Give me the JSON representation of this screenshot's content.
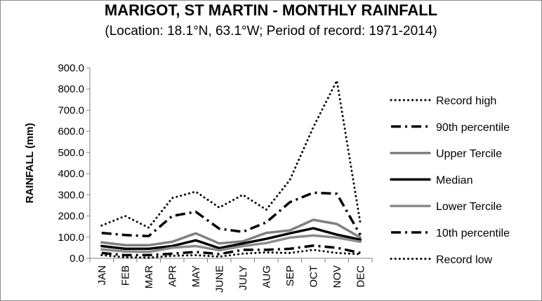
{
  "title": "MARIGOT, ST MARTIN - MONTHLY RAINFALL",
  "subtitle": "(Location: 18.1°N, 63.1°W; Period of record: 1971-2014)",
  "chart_data": {
    "type": "line",
    "categories": [
      "JAN",
      "FEB",
      "MAR",
      "APR",
      "MAY",
      "JUNE",
      "JULY",
      "AUG",
      "SEP",
      "OCT",
      "NOV",
      "DEC"
    ],
    "ylabel": "RAINFALL (mm)",
    "xlabel": "",
    "ylim": [
      0,
      900
    ],
    "yticks": [
      "0.0",
      "100.0",
      "200.0",
      "300.0",
      "400.0",
      "500.0",
      "600.0",
      "700.0",
      "800.0",
      "900.0"
    ],
    "grid": false,
    "legend_position": "right",
    "series": [
      {
        "name": "Record high",
        "style": "dotted",
        "color": "#000000",
        "values": [
          155,
          200,
          145,
          285,
          315,
          240,
          300,
          230,
          370,
          620,
          840,
          165
        ]
      },
      {
        "name": "90th percentile",
        "style": "dash-dot",
        "color": "#000000",
        "values": [
          120,
          110,
          105,
          200,
          220,
          140,
          125,
          170,
          265,
          310,
          305,
          110
        ]
      },
      {
        "name": "Upper Tercile",
        "style": "solid",
        "color": "#808080",
        "values": [
          75,
          62,
          62,
          78,
          118,
          70,
          80,
          120,
          132,
          182,
          162,
          98
        ]
      },
      {
        "name": "Median",
        "style": "solid",
        "color": "#000000",
        "values": [
          58,
          45,
          45,
          58,
          85,
          48,
          70,
          92,
          118,
          142,
          112,
          88
        ]
      },
      {
        "name": "Lower Tercile",
        "style": "solid",
        "color": "#8c8c8c",
        "values": [
          42,
          32,
          30,
          50,
          58,
          38,
          58,
          72,
          98,
          108,
          98,
          78
        ]
      },
      {
        "name": "10th percentile",
        "style": "dash-dot",
        "color": "#000000",
        "values": [
          25,
          15,
          15,
          22,
          30,
          20,
          40,
          40,
          45,
          60,
          50,
          25
        ]
      },
      {
        "name": "Record low",
        "style": "dotted",
        "color": "#000000",
        "values": [
          15,
          5,
          3,
          12,
          15,
          8,
          22,
          28,
          25,
          40,
          25,
          20
        ]
      }
    ]
  }
}
